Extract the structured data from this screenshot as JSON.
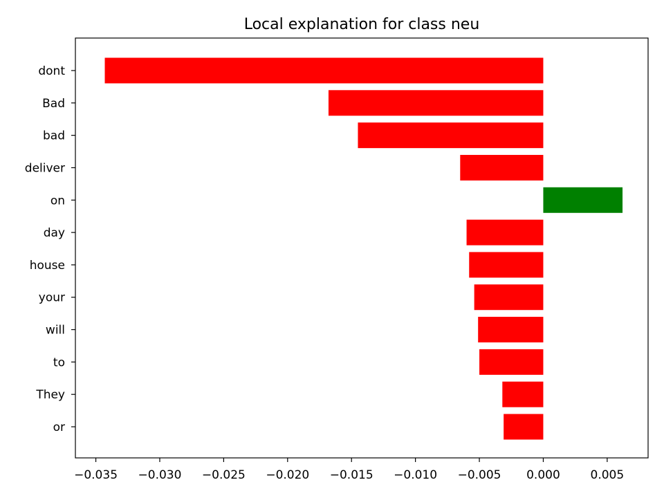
{
  "chart_data": {
    "type": "bar",
    "orientation": "horizontal",
    "title": "Local explanation for class neu",
    "xlabel": "",
    "ylabel": "",
    "categories": [
      "dont",
      "Bad",
      "bad",
      "deliver",
      "on",
      "day",
      "house",
      "your",
      "will",
      "to",
      "They",
      "or"
    ],
    "values": [
      -0.0343,
      -0.0168,
      -0.0145,
      -0.0065,
      0.0062,
      -0.006,
      -0.0058,
      -0.0054,
      -0.0051,
      -0.005,
      -0.0032,
      -0.0031
    ],
    "xlim": [
      -0.0366,
      0.0082
    ],
    "x_ticks": [
      -0.035,
      -0.03,
      -0.025,
      -0.02,
      -0.015,
      -0.01,
      -0.005,
      0.0,
      0.005
    ],
    "x_tick_labels": [
      "−0.035",
      "−0.030",
      "−0.025",
      "−0.020",
      "−0.015",
      "−0.010",
      "−0.005",
      "0.000",
      "0.005"
    ],
    "grid": false,
    "legend": "none",
    "colors": {
      "positive": "#008000",
      "negative": "#ff0000",
      "axis": "#000000",
      "background": "#ffffff"
    }
  }
}
